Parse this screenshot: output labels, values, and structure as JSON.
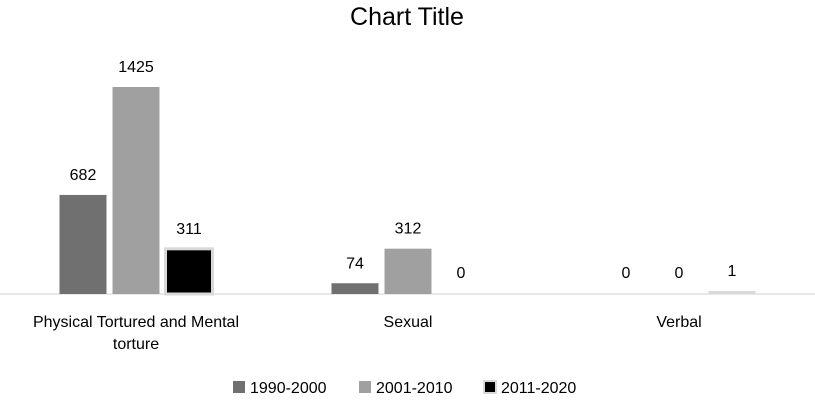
{
  "chart_data": {
    "type": "bar",
    "title": "Chart Title",
    "categories": [
      [
        "Physical Tortured and Mental",
        "torture"
      ],
      [
        "Sexual"
      ],
      [
        "Verbal"
      ]
    ],
    "series": [
      {
        "name": "1990-2000",
        "values": [
          682,
          74,
          0
        ],
        "color": "#707070"
      },
      {
        "name": "2001-2010",
        "values": [
          1425,
          312,
          0
        ],
        "color": "#a0a0a0"
      },
      {
        "name": "2011-2020",
        "values": [
          311,
          0,
          1
        ],
        "color": "#000000"
      }
    ],
    "data_labels": true,
    "grid": false,
    "legend_position": "bottom",
    "xlabel": "",
    "ylabel": "",
    "ylim": [
      0,
      1425
    ]
  }
}
